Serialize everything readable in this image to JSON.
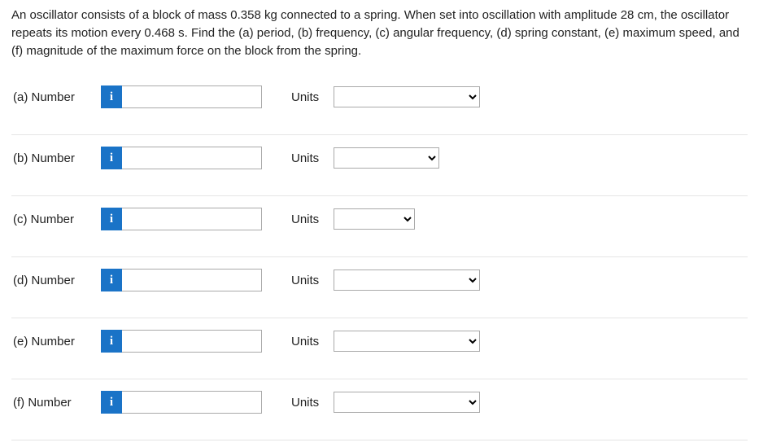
{
  "question_text": "An oscillator consists of a block of mass 0.358 kg connected to a spring. When set into oscillation with amplitude 28 cm, the oscillator repeats its motion every 0.468 s. Find the (a) period, (b) frequency, (c) angular frequency, (d) spring constant, (e) maximum speed, and (f) magnitude of the maximum force on the block from the spring.",
  "number_label": "Number",
  "units_label": "Units",
  "info_glyph": "i",
  "parts": {
    "a": {
      "label": "(a)   Number",
      "select_width": "w1"
    },
    "b": {
      "label": "(b)   Number",
      "select_width": "w2"
    },
    "c": {
      "label": "(c)   Number",
      "select_width": "w3"
    },
    "d": {
      "label": "(d)   Number",
      "select_width": "w1"
    },
    "e": {
      "label": "(e)   Number",
      "select_width": "w1"
    },
    "f": {
      "label": "(f)   Number",
      "select_width": "w1"
    }
  },
  "colors": {
    "info_bg": "#1a73c7",
    "border": "#aaaaaa",
    "divider": "#e5e5e5"
  }
}
